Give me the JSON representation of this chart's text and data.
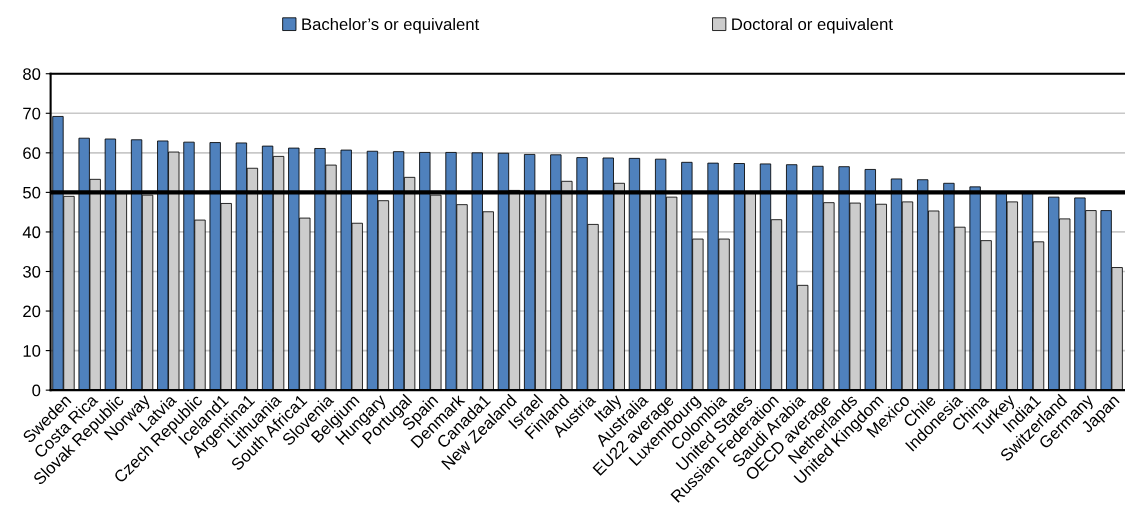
{
  "chart_data": {
    "type": "bar",
    "categories": [
      "Sweden",
      "Costa Rica",
      "Slovak Republic",
      "Norway",
      "Latvia",
      "Czech Republic",
      "Iceland1",
      "Argentina1",
      "Lithuania",
      "South Africa1",
      "Slovenia",
      "Belgium",
      "Hungary",
      "Portugal",
      "Spain",
      "Denmark",
      "Canada1",
      "New Zealand",
      "Israel",
      "Finland",
      "Austria",
      "Italy",
      "Australia",
      "EU22 average",
      "Luxembourg",
      "Colombia",
      "United States",
      "Russian Federation",
      "Saudi Arabia",
      "OECD average",
      "Netherlands",
      "United Kingdom",
      "Mexico",
      "Chile",
      "Indonesia",
      "China",
      "Turkey",
      "India1",
      "Switzerland",
      "Germany",
      "Japan"
    ],
    "series": [
      {
        "name": "Bachelor’s or equivalent",
        "color": "#4f81bd",
        "values": [
          69.2,
          63.7,
          63.5,
          63.3,
          63.0,
          62.7,
          62.6,
          62.5,
          61.7,
          61.2,
          61.1,
          60.7,
          60.4,
          60.3,
          60.1,
          60.1,
          60.0,
          59.9,
          59.6,
          59.5,
          58.8,
          58.7,
          58.6,
          58.4,
          57.6,
          57.4,
          57.3,
          57.2,
          57.0,
          56.6,
          56.5,
          55.8,
          53.4,
          53.2,
          52.3,
          51.4,
          50.0,
          49.7,
          48.8,
          48.6,
          45.4
        ]
      },
      {
        "name": "Doctoral or equivalent",
        "color": "#cccccc",
        "values": [
          49.0,
          53.3,
          49.7,
          49.3,
          60.2,
          43.0,
          47.2,
          56.1,
          59.1,
          43.5,
          56.9,
          42.2,
          47.9,
          53.8,
          49.3,
          46.9,
          45.1,
          50.5,
          50.0,
          52.8,
          41.9,
          52.3,
          50.0,
          48.8,
          38.2,
          38.2,
          50.0,
          43.1,
          26.5,
          47.4,
          47.3,
          47.0,
          47.6,
          45.3,
          41.2,
          37.8,
          47.6,
          37.5,
          43.3,
          45.4,
          31.0
        ]
      }
    ],
    "ylim": [
      0,
      80
    ],
    "yticks": [
      0,
      10,
      20,
      30,
      40,
      50,
      60,
      70,
      80
    ],
    "grid": "y",
    "legend": "top",
    "ref_lines": [
      {
        "axis": "y",
        "value": 50,
        "color": "#000000"
      }
    ]
  }
}
